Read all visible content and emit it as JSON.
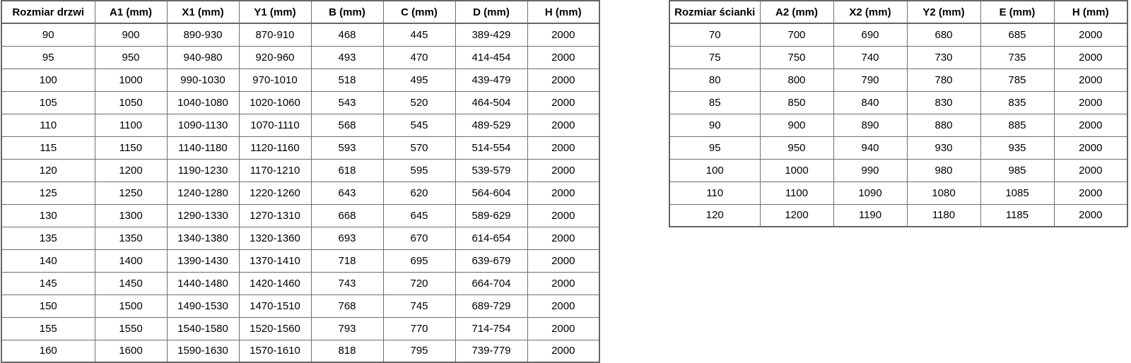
{
  "colors": {
    "background": "#ffffff",
    "border": "#6e6e6e",
    "text": "#000000"
  },
  "tables": [
    {
      "id": "door-table",
      "title_column": "Rozmiar drzwi",
      "headers": [
        "Rozmiar drzwi",
        "A1 (mm)",
        "X1 (mm)",
        "Y1 (mm)",
        "B (mm)",
        "C (mm)",
        "D (mm)",
        "H (mm)"
      ],
      "rows": [
        [
          "90",
          "900",
          "890-930",
          "870-910",
          "468",
          "445",
          "389-429",
          "2000"
        ],
        [
          "95",
          "950",
          "940-980",
          "920-960",
          "493",
          "470",
          "414-454",
          "2000"
        ],
        [
          "100",
          "1000",
          "990-1030",
          "970-1010",
          "518",
          "495",
          "439-479",
          "2000"
        ],
        [
          "105",
          "1050",
          "1040-1080",
          "1020-1060",
          "543",
          "520",
          "464-504",
          "2000"
        ],
        [
          "110",
          "1100",
          "1090-1130",
          "1070-1110",
          "568",
          "545",
          "489-529",
          "2000"
        ],
        [
          "115",
          "1150",
          "1140-1180",
          "1120-1160",
          "593",
          "570",
          "514-554",
          "2000"
        ],
        [
          "120",
          "1200",
          "1190-1230",
          "1170-1210",
          "618",
          "595",
          "539-579",
          "2000"
        ],
        [
          "125",
          "1250",
          "1240-1280",
          "1220-1260",
          "643",
          "620",
          "564-604",
          "2000"
        ],
        [
          "130",
          "1300",
          "1290-1330",
          "1270-1310",
          "668",
          "645",
          "589-629",
          "2000"
        ],
        [
          "135",
          "1350",
          "1340-1380",
          "1320-1360",
          "693",
          "670",
          "614-654",
          "2000"
        ],
        [
          "140",
          "1400",
          "1390-1430",
          "1370-1410",
          "718",
          "695",
          "639-679",
          "2000"
        ],
        [
          "145",
          "1450",
          "1440-1480",
          "1420-1460",
          "743",
          "720",
          "664-704",
          "2000"
        ],
        [
          "150",
          "1500",
          "1490-1530",
          "1470-1510",
          "768",
          "745",
          "689-729",
          "2000"
        ],
        [
          "155",
          "1550",
          "1540-1580",
          "1520-1560",
          "793",
          "770",
          "714-754",
          "2000"
        ],
        [
          "160",
          "1600",
          "1590-1630",
          "1570-1610",
          "818",
          "795",
          "739-779",
          "2000"
        ]
      ]
    },
    {
      "id": "wall-table",
      "title_column": "Rozmiar ścianki",
      "headers": [
        "Rozmiar ścianki",
        "A2 (mm)",
        "X2 (mm)",
        "Y2 (mm)",
        "E (mm)",
        "H (mm)"
      ],
      "rows": [
        [
          "70",
          "700",
          "690",
          "680",
          "685",
          "2000"
        ],
        [
          "75",
          "750",
          "740",
          "730",
          "735",
          "2000"
        ],
        [
          "80",
          "800",
          "790",
          "780",
          "785",
          "2000"
        ],
        [
          "85",
          "850",
          "840",
          "830",
          "835",
          "2000"
        ],
        [
          "90",
          "900",
          "890",
          "880",
          "885",
          "2000"
        ],
        [
          "95",
          "950",
          "940",
          "930",
          "935",
          "2000"
        ],
        [
          "100",
          "1000",
          "990",
          "980",
          "985",
          "2000"
        ],
        [
          "110",
          "1100",
          "1090",
          "1080",
          "1085",
          "2000"
        ],
        [
          "120",
          "1200",
          "1190",
          "1180",
          "1185",
          "2000"
        ]
      ]
    }
  ]
}
